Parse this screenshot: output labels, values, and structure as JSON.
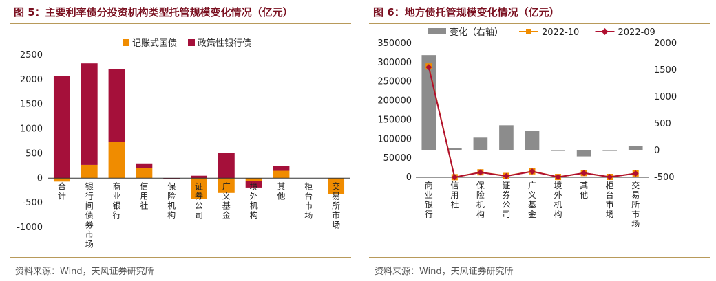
{
  "colors": {
    "title": "#7a1020",
    "rule": "#b89a5a",
    "orange": "#f08c00",
    "crimson": "#a5103a",
    "gray": "#8c8c8c",
    "line09": "#b01030"
  },
  "chart_data": [
    {
      "type": "bar",
      "stacked": true,
      "title": "图 5：主要利率债分投资机构类型托管规模变化情况（亿元）",
      "source": "资料来源：Wind，天风证券研究所",
      "categories": [
        "合计",
        "银行间债券市场",
        "商业银行",
        "信用社",
        "保险机构",
        "证券公司",
        "广义基金",
        "境外机构",
        "其他",
        "柜台市场",
        "交易所市场"
      ],
      "series": [
        {
          "name": "记账式国债",
          "color": "#f08c00",
          "values": [
            -70,
            270,
            740,
            210,
            0,
            -420,
            -300,
            -60,
            150,
            0,
            -330
          ]
        },
        {
          "name": "政策性银行债",
          "color": "#a5103a",
          "values": [
            2070,
            2060,
            1480,
            90,
            -10,
            50,
            510,
            -130,
            100,
            0,
            0
          ]
        }
      ],
      "ylim": [
        -1000,
        2500
      ],
      "yticks": [
        -1000,
        -500,
        0,
        500,
        1000,
        1500,
        2000,
        2500
      ],
      "legend": "top-center"
    },
    {
      "type": "bar-line-combo",
      "title": "图 6：地方债托管规模变化情况（亿元）",
      "source": "资料来源：Wind，天风证券研究所",
      "categories": [
        "商业银行",
        "信用社",
        "保险机构",
        "证券公司",
        "广义基金",
        "境外机构",
        "其他",
        "柜台市场",
        "交易所市场"
      ],
      "bar_series": {
        "name": "变化（右轴）",
        "color": "#8c8c8c",
        "axis": "right",
        "values": [
          1780,
          40,
          240,
          470,
          370,
          5,
          -110,
          5,
          80
        ]
      },
      "line_series": [
        {
          "name": "2022-10",
          "color": "#f08c00",
          "marker": "square",
          "axis": "left",
          "values": [
            289500,
            250,
            13100,
            3600,
            15600,
            700,
            11000,
            900,
            10000
          ]
        },
        {
          "name": "2022-09",
          "color": "#b01030",
          "marker": "diamond",
          "axis": "left",
          "values": [
            287700,
            210,
            12860,
            3130,
            15230,
            695,
            11110,
            895,
            9920
          ]
        }
      ],
      "ylim_left": [
        0,
        350000
      ],
      "yticks_left": [
        0,
        50000,
        100000,
        150000,
        200000,
        250000,
        300000,
        350000
      ],
      "ylim_right": [
        -500,
        2000
      ],
      "yticks_right": [
        -500,
        0,
        500,
        1000,
        1500,
        2000
      ],
      "legend": "top-center"
    }
  ]
}
